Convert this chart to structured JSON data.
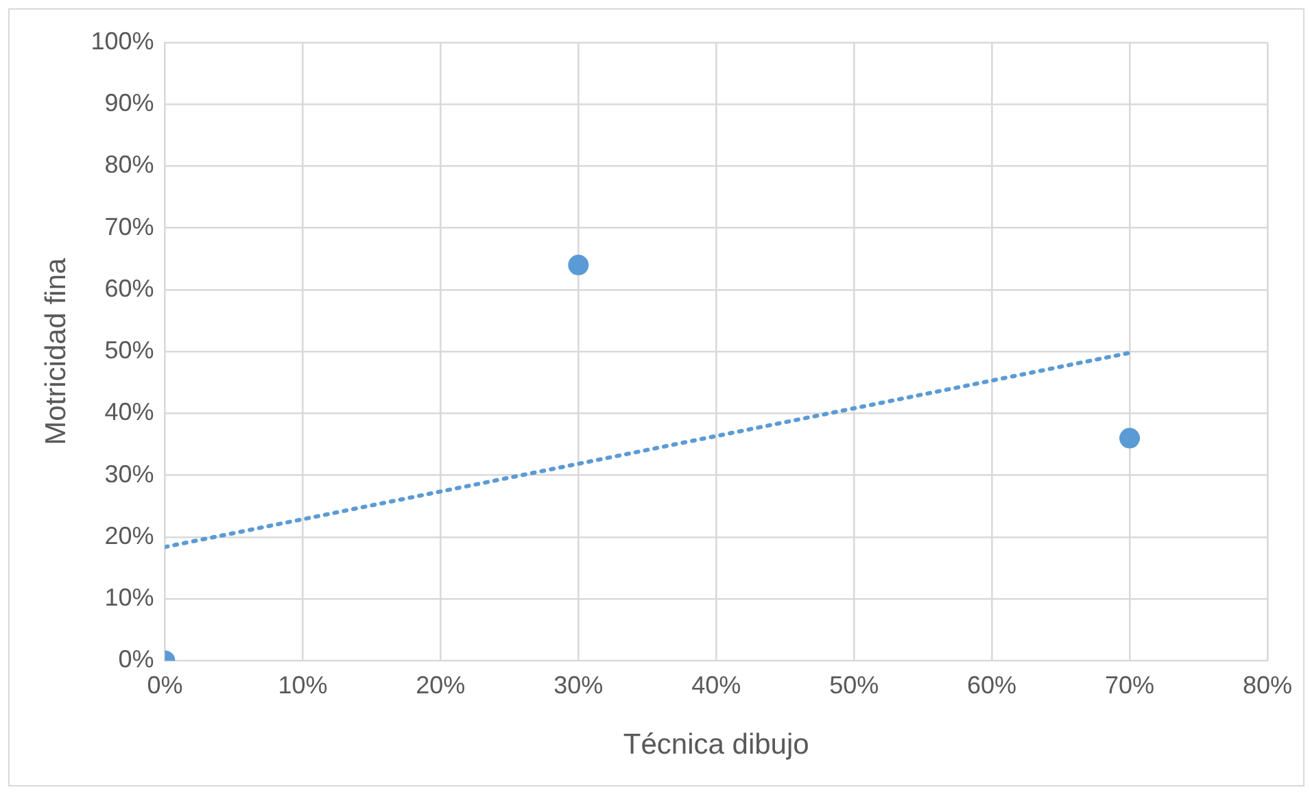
{
  "chart_data": {
    "type": "scatter",
    "xlabel": "Técnica dibujo",
    "ylabel": "Motricidad fina",
    "grid": true,
    "xlim": [
      0,
      80
    ],
    "xticks": [
      {
        "value": 0,
        "label": "0%"
      },
      {
        "value": 10,
        "label": "10%"
      },
      {
        "value": 20,
        "label": "20%"
      },
      {
        "value": 30,
        "label": "30%"
      },
      {
        "value": 40,
        "label": "40%"
      },
      {
        "value": 50,
        "label": "50%"
      },
      {
        "value": 60,
        "label": "60%"
      },
      {
        "value": 70,
        "label": "70%"
      },
      {
        "value": 80,
        "label": "80%"
      }
    ],
    "ylim": [
      0,
      100
    ],
    "yticks": [
      {
        "value": 0,
        "label": "0%"
      },
      {
        "value": 10,
        "label": "10%"
      },
      {
        "value": 20,
        "label": "20%"
      },
      {
        "value": 30,
        "label": "30%"
      },
      {
        "value": 40,
        "label": "40%"
      },
      {
        "value": 50,
        "label": "50%"
      },
      {
        "value": 60,
        "label": "60%"
      },
      {
        "value": 70,
        "label": "70%"
      },
      {
        "value": 80,
        "label": "80%"
      },
      {
        "value": 90,
        "label": "90%"
      },
      {
        "value": 100,
        "label": "100%"
      }
    ],
    "series": [
      {
        "color": "#5b9bd5",
        "x": [
          0,
          30,
          70
        ],
        "values": [
          0,
          64,
          36
        ],
        "marker": "circle"
      },
      {
        "type": "line",
        "color": "#5b9bd5",
        "x": [
          0,
          70
        ],
        "values": [
          18.4,
          49.8
        ],
        "marker": "none",
        "line_style": "dotted"
      }
    ]
  }
}
